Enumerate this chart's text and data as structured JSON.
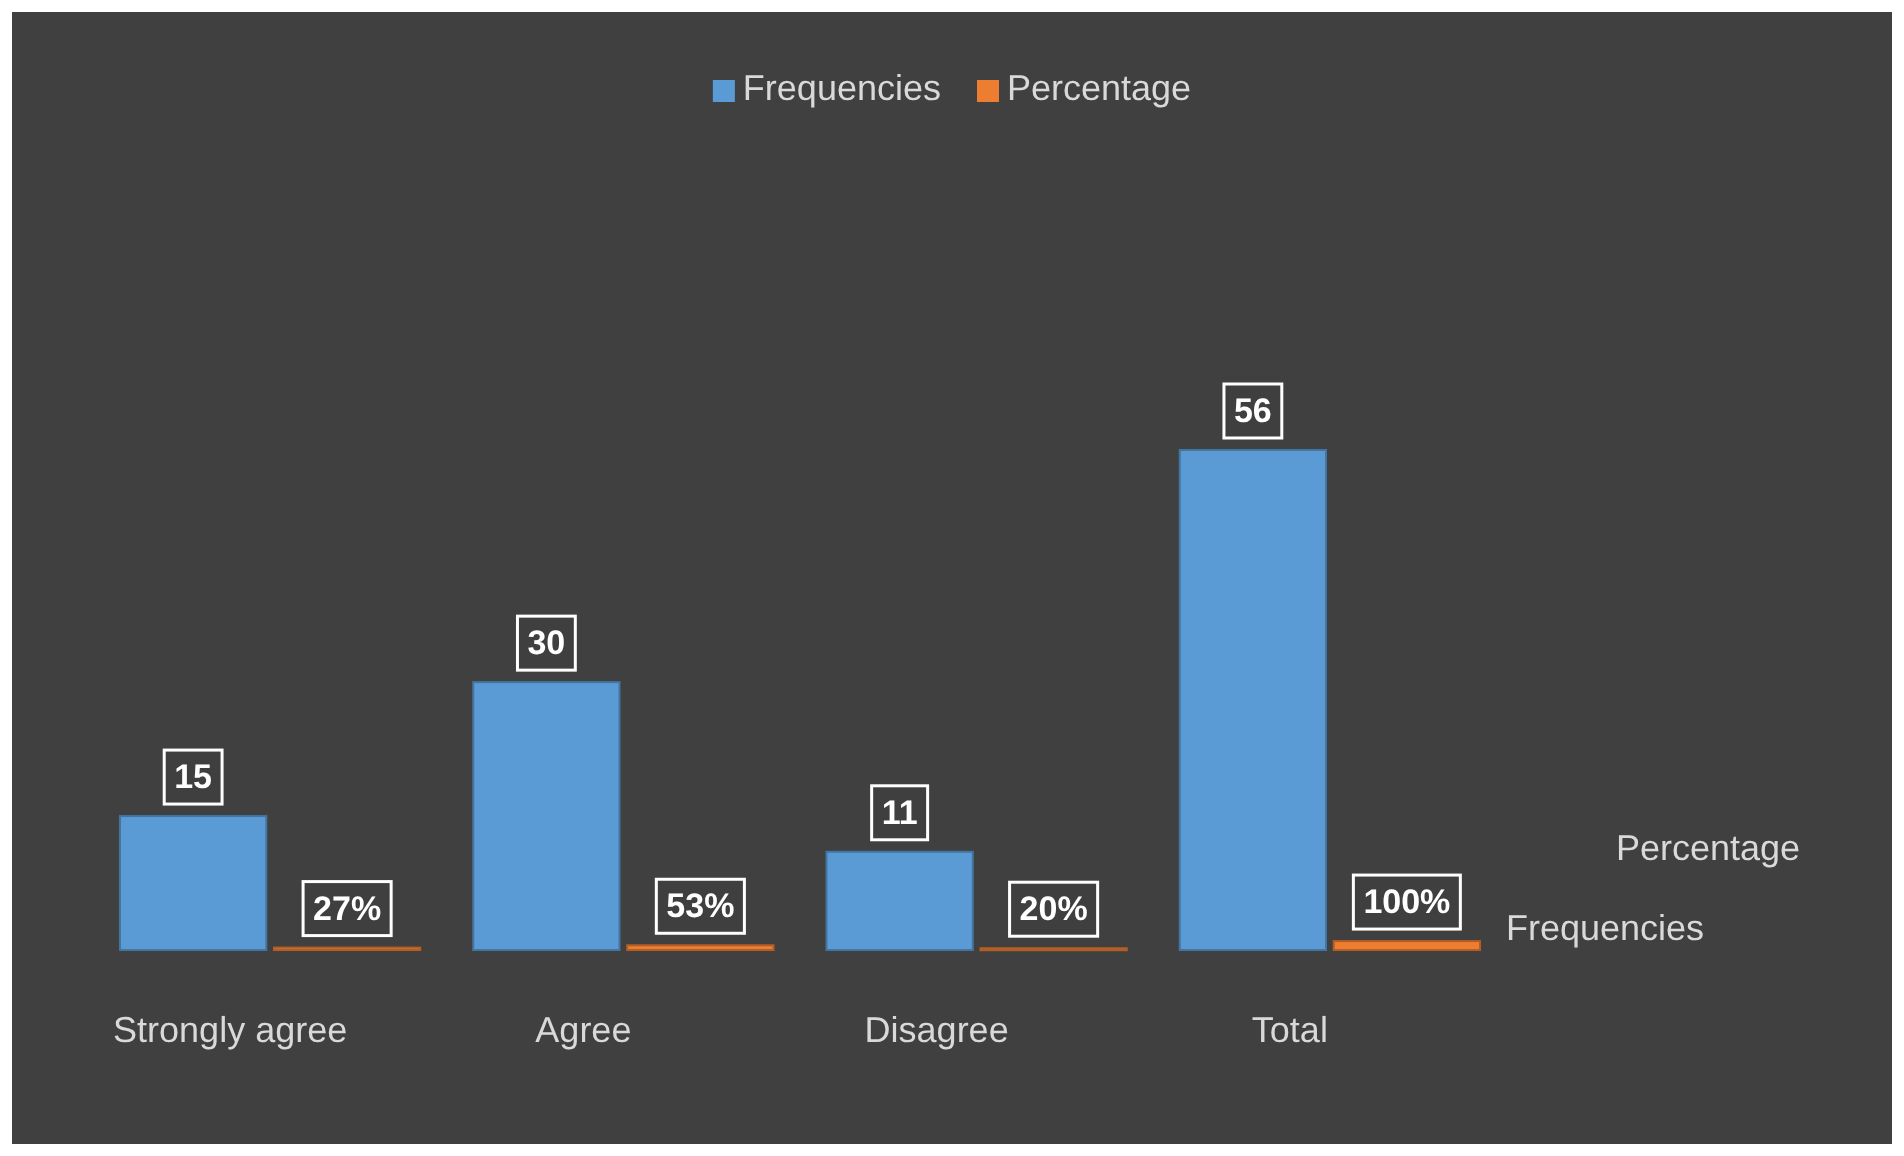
{
  "chart_data": {
    "type": "bar",
    "relative": false,
    "categories": [
      "Strongly agree",
      "Agree",
      "Disagree",
      "Total"
    ],
    "series": [
      {
        "name": "Frequencies",
        "color": "#5b9bd5",
        "values": [
          15,
          30,
          11,
          56
        ],
        "value_labels": [
          "15",
          "30",
          "11",
          "56"
        ]
      },
      {
        "name": "Percentage",
        "color": "#ed7d31",
        "values": [
          0.27,
          0.53,
          0.2,
          1.0
        ],
        "value_labels": [
          "27%",
          "53%",
          "20%",
          "100%"
        ]
      }
    ],
    "legend": "top",
    "grid": false
  }
}
